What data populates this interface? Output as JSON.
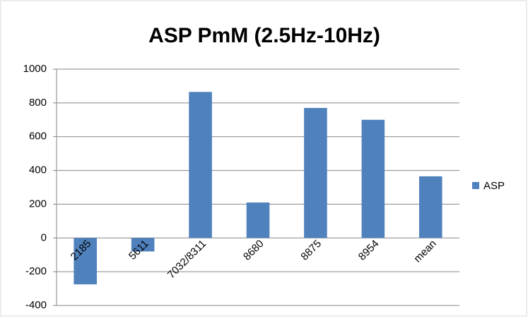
{
  "chart_data": {
    "type": "bar",
    "title": "ASP PmM (2.5Hz-10Hz)",
    "categories": [
      "2185",
      "5611",
      "7032/8311",
      "8680",
      "8875",
      "8954",
      "mean"
    ],
    "series": [
      {
        "name": "ASP",
        "color": "#4f81bd",
        "values": [
          -275,
          -80,
          865,
          210,
          770,
          700,
          365
        ]
      }
    ],
    "ylim": [
      -400,
      1000
    ],
    "yticks": [
      -400,
      -200,
      0,
      200,
      400,
      600,
      800,
      1000
    ],
    "grid": true,
    "legend": "right"
  }
}
